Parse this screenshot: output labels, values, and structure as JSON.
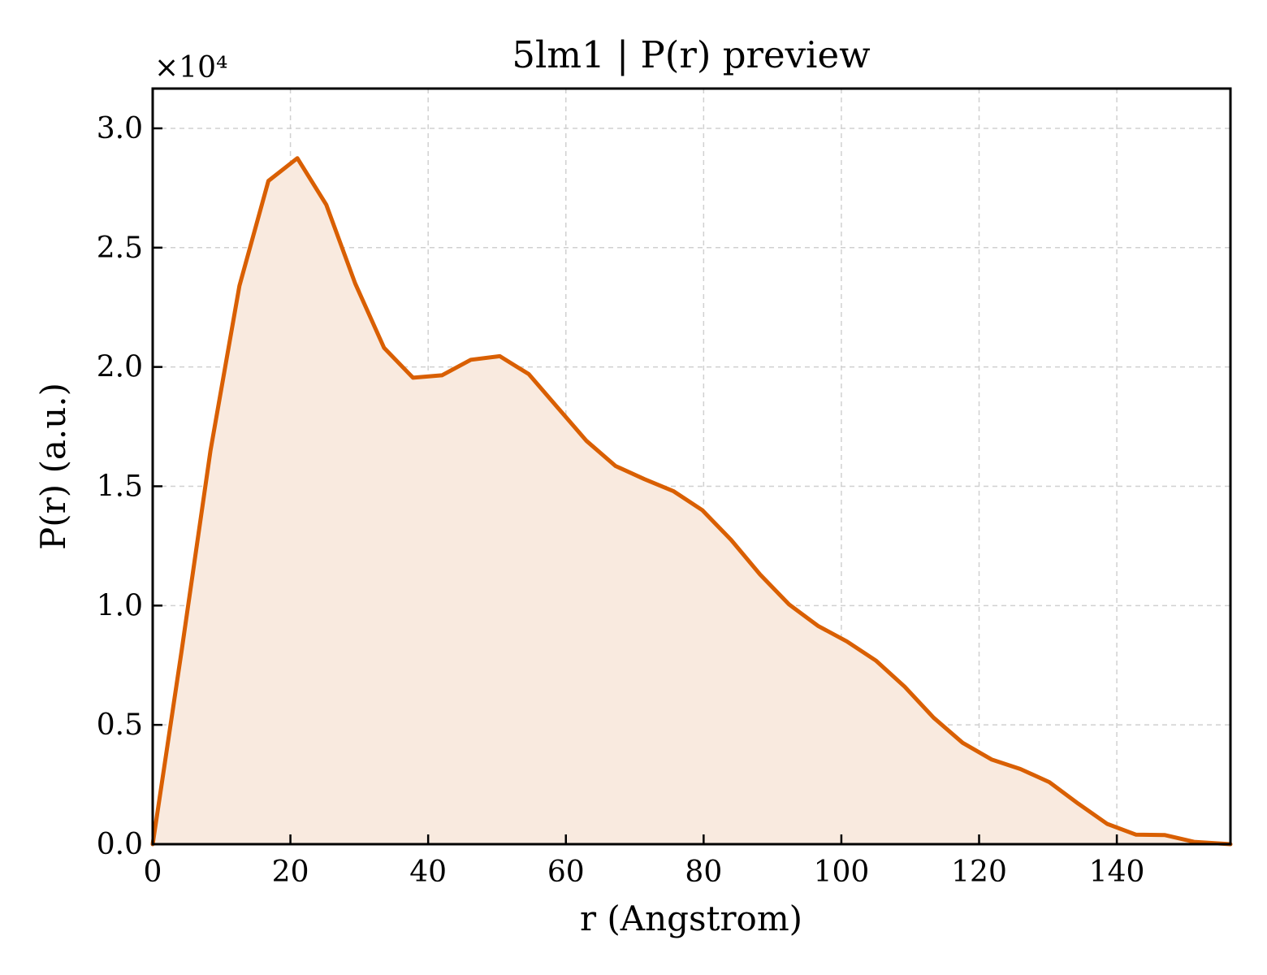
{
  "chart_data": {
    "type": "area",
    "title": "5lm1 | P(r) preview",
    "xlabel": "r (Angstrom)",
    "ylabel": "P(r) (a.u.)",
    "y_offset_label": "×10⁴",
    "y_scale": 10000,
    "xlim": [
      0,
      156.5
    ],
    "ylim": [
      0,
      31667
    ],
    "xticks": [
      0,
      20,
      40,
      60,
      80,
      100,
      120,
      140
    ],
    "yticks": [
      0,
      5000,
      10000,
      15000,
      20000,
      25000,
      30000
    ],
    "ytick_labels": [
      "0.0",
      "0.5",
      "1.0",
      "1.5",
      "2.0",
      "2.5",
      "3.0"
    ],
    "grid": true,
    "line_color": "#d95f02",
    "fill_color": "#f9eadf",
    "series": [
      {
        "x": [
          0,
          4.2,
          8.4,
          12.6,
          16.8,
          21.0,
          25.2,
          29.4,
          33.6,
          37.8,
          42.0,
          46.2,
          50.4,
          54.6,
          58.8,
          63.0,
          67.2,
          71.4,
          75.6,
          79.8,
          84.0,
          88.2,
          92.4,
          96.6,
          100.8,
          105.0,
          109.2,
          113.4,
          117.6,
          121.8,
          126.0,
          130.2,
          134.4,
          138.6,
          142.8,
          147.0,
          151.2,
          156.5
        ],
        "y": [
          0,
          8100,
          16500,
          23400,
          27800,
          28750,
          26800,
          23500,
          20800,
          19550,
          19650,
          20300,
          20450,
          19700,
          18300,
          16900,
          15850,
          15300,
          14800,
          14000,
          12750,
          11300,
          10050,
          9150,
          8500,
          7700,
          6600,
          5300,
          4250,
          3550,
          3150,
          2600,
          1700,
          850,
          400,
          380,
          100,
          0
        ]
      }
    ]
  }
}
